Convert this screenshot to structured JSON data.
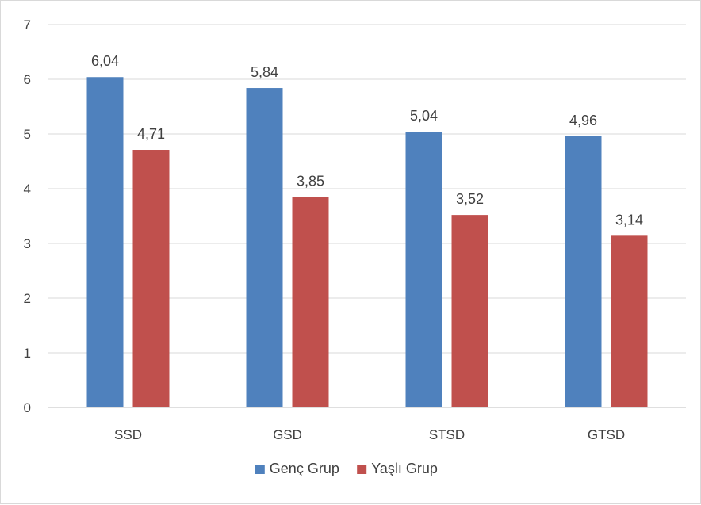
{
  "chart_data": {
    "type": "bar",
    "categories": [
      "SSD",
      "GSD",
      "STSD",
      "GTSD"
    ],
    "series": [
      {
        "name": "Genç Grup",
        "values": [
          6.04,
          5.84,
          5.04,
          4.96
        ],
        "labels": [
          "6,04",
          "5,84",
          "5,04",
          "4,96"
        ],
        "color": "#4f81bd"
      },
      {
        "name": "Yaşlı Grup",
        "values": [
          4.71,
          3.85,
          3.52,
          3.14
        ],
        "labels": [
          "4,71",
          "3,85",
          "3,52",
          "3,14"
        ],
        "color": "#c0504d"
      }
    ],
    "ylim": [
      0,
      7
    ],
    "yticks": [
      0,
      1,
      2,
      3,
      4,
      5,
      6,
      7
    ],
    "grid": true,
    "legend": "bottom",
    "title": "",
    "xlabel": "",
    "ylabel": ""
  },
  "colors": {
    "grid": "#d9d9d9",
    "axis": "#bfbfbf",
    "text": "#404040"
  }
}
